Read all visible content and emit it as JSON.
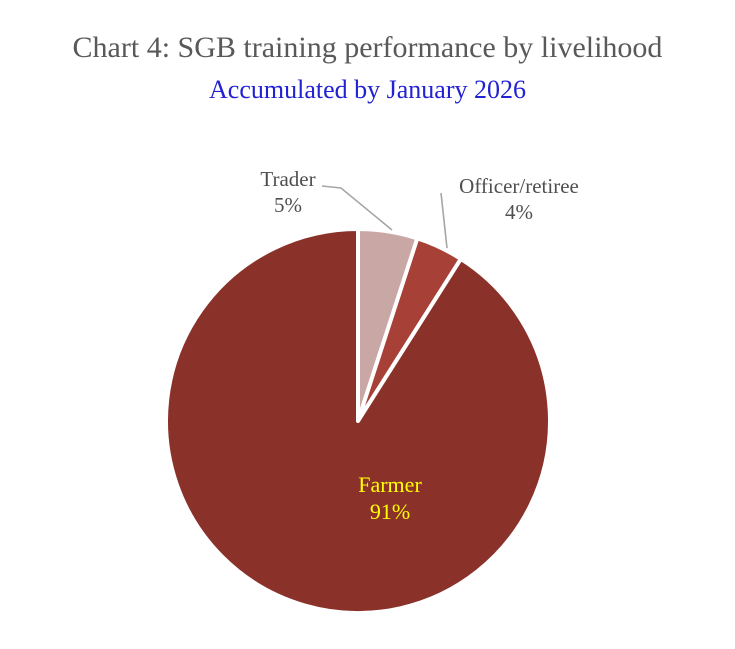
{
  "chart_data": {
    "type": "pie",
    "title": "Chart 4: SGB training performance by livelihood",
    "subtitle": "Accumulated by January 2026",
    "unit": "%",
    "start_angle_deg": 0,
    "direction": "clockwise",
    "legend": "none",
    "slices": [
      {
        "label": "Trader",
        "value": 5,
        "pct_text": "5%",
        "color": "#C9A7A4",
        "label_placement": "outside-callout"
      },
      {
        "label": "Officer/retiree",
        "value": 4,
        "pct_text": "4%",
        "color": "#A74137",
        "label_placement": "outside-callout"
      },
      {
        "label": "Farmer",
        "value": 91,
        "pct_text": "91%",
        "color": "#8A3129",
        "label_placement": "inside"
      }
    ]
  },
  "colors": {
    "background": "#FFFFFF",
    "title_text": "#595959",
    "subtitle_text": "#2222D3",
    "callout_label_text": "#4F4F4F",
    "farmer_label_text": "#FFFF00",
    "leader_line": "#A6A6A6",
    "slice_border": "#FFFFFF"
  }
}
